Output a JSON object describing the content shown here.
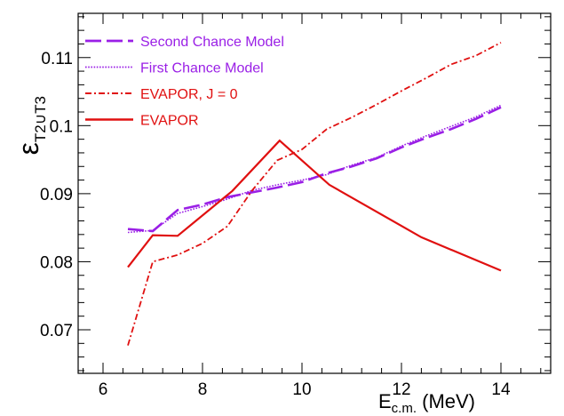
{
  "chart_data": {
    "type": "line",
    "xlabel": {
      "main": "E",
      "sub": "c.m.",
      "unit": " (MeV)"
    },
    "ylabel": {
      "main": "ε",
      "sub": "T2∪T3"
    },
    "xlim": [
      5.5,
      15.0
    ],
    "ylim": [
      0.0636,
      0.1165
    ],
    "xticks": [
      6,
      8,
      10,
      12,
      14
    ],
    "xtick_labels": [
      "6",
      "8",
      "10",
      "12",
      "14"
    ],
    "yticks": [
      0.07,
      0.08,
      0.09,
      0.1,
      0.11
    ],
    "ytick_labels": [
      "0.07",
      "0.08",
      "0.09",
      "0.1",
      "0.11"
    ],
    "grid": false,
    "legend_position": "top-left",
    "series": [
      {
        "name": "Second Chance Model",
        "color": "#9a1fe6",
        "style": "dashed",
        "x": [
          6.5,
          7.0,
          7.5,
          8.0,
          8.5,
          9.0,
          9.5,
          10.0,
          10.5,
          11.0,
          11.5,
          12.0,
          12.5,
          13.0,
          13.5,
          14.0
        ],
        "y": [
          0.0848,
          0.0845,
          0.0876,
          0.0884,
          0.0895,
          0.0902,
          0.0909,
          0.0917,
          0.093,
          0.094,
          0.0952,
          0.0968,
          0.0982,
          0.0995,
          0.101,
          0.1027
        ]
      },
      {
        "name": "First Chance Model",
        "color": "#9a1fe6",
        "style": "dotted",
        "x": [
          6.5,
          7.0,
          7.5,
          8.0,
          8.5,
          9.0,
          9.5,
          10.0,
          10.5,
          11.0,
          11.5,
          12.0,
          12.5,
          13.0,
          13.5,
          14.0
        ],
        "y": [
          0.0843,
          0.0846,
          0.0871,
          0.0881,
          0.0892,
          0.0905,
          0.0913,
          0.092,
          0.0928,
          0.0942,
          0.0953,
          0.097,
          0.0985,
          0.0999,
          0.1013,
          0.103
        ]
      },
      {
        "name": "EVAPOR, J = 0",
        "color": "#e01010",
        "style": "dashdot",
        "x": [
          6.5,
          7.0,
          7.5,
          8.0,
          8.5,
          9.0,
          9.5,
          10.0,
          10.5,
          11.0,
          11.5,
          12.0,
          12.5,
          13.0,
          13.5,
          14.0
        ],
        "y": [
          0.0677,
          0.08,
          0.081,
          0.0827,
          0.0852,
          0.0905,
          0.0949,
          0.0965,
          0.0995,
          0.1012,
          0.1031,
          0.1051,
          0.107,
          0.109,
          0.1103,
          0.1122
        ]
      },
      {
        "name": "EVAPOR",
        "color": "#e01010",
        "style": "solid",
        "x": [
          6.5,
          7.0,
          7.5,
          8.6,
          9.55,
          10.55,
          12.4,
          14.0
        ],
        "y": [
          0.0792,
          0.0839,
          0.0838,
          0.0904,
          0.0978,
          0.0913,
          0.0836,
          0.0787
        ]
      }
    ]
  }
}
